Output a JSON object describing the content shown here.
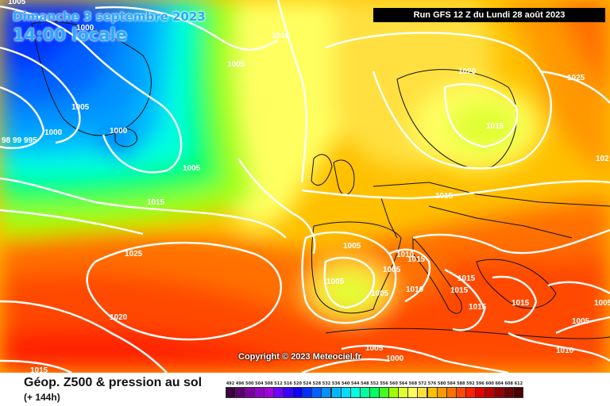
{
  "header": {
    "date_line": "Dimanche 3 septembre 2023",
    "time_line": "14:00 locale",
    "run_info": "Run GFS 12 Z du Lundi 28 août 2023"
  },
  "copyright": "Copyright © 2023 Meteociel.fr",
  "legend": {
    "title": "Géop. Z500 & pression au sol",
    "subtitle": "(+ 144h)",
    "scale": [
      {
        "value": "492",
        "color": "#3c0040"
      },
      {
        "value": "496",
        "color": "#5a0070"
      },
      {
        "value": "500",
        "color": "#7a00a0"
      },
      {
        "value": "504",
        "color": "#9000c8"
      },
      {
        "value": "508",
        "color": "#a000e0"
      },
      {
        "value": "512",
        "color": "#6e00ff"
      },
      {
        "value": "516",
        "color": "#3c00ff"
      },
      {
        "value": "520",
        "color": "#1000ff"
      },
      {
        "value": "524",
        "color": "#0030ff"
      },
      {
        "value": "528",
        "color": "#0060ff"
      },
      {
        "value": "532",
        "color": "#0090ff"
      },
      {
        "value": "536",
        "color": "#00b8ff"
      },
      {
        "value": "540",
        "color": "#00dcff"
      },
      {
        "value": "544",
        "color": "#00ffe0"
      },
      {
        "value": "548",
        "color": "#00ffa0"
      },
      {
        "value": "552",
        "color": "#00ff60"
      },
      {
        "value": "556",
        "color": "#40ff20"
      },
      {
        "value": "560",
        "color": "#a0ff00"
      },
      {
        "value": "564",
        "color": "#e0ff30"
      },
      {
        "value": "568",
        "color": "#ffff60"
      },
      {
        "value": "572",
        "color": "#ffe040"
      },
      {
        "value": "576",
        "color": "#ffc000"
      },
      {
        "value": "580",
        "color": "#ff9800"
      },
      {
        "value": "584",
        "color": "#ff7000"
      },
      {
        "value": "588",
        "color": "#ff4800"
      },
      {
        "value": "592",
        "color": "#ff2000"
      },
      {
        "value": "596",
        "color": "#e00000"
      },
      {
        "value": "600",
        "color": "#b80000"
      },
      {
        "value": "604",
        "color": "#900000"
      },
      {
        "value": "608",
        "color": "#6a0000"
      },
      {
        "value": "612",
        "color": "#480000"
      }
    ]
  },
  "isobar_labels": [
    {
      "text": "1005"
    },
    {
      "text": "1000"
    },
    {
      "text": "1010"
    },
    {
      "text": "1005"
    },
    {
      "text": "1005"
    },
    {
      "text": "1000"
    },
    {
      "text": "1000"
    },
    {
      "text": "98"
    },
    {
      "text": "99"
    },
    {
      "text": "995"
    },
    {
      "text": "1005"
    },
    {
      "text": "1015"
    },
    {
      "text": "1020"
    },
    {
      "text": "1025"
    },
    {
      "text": "1015"
    },
    {
      "text": "102"
    },
    {
      "text": "1015"
    },
    {
      "text": "1025"
    },
    {
      "text": "1020"
    },
    {
      "text": "1005"
    },
    {
      "text": "1005"
    },
    {
      "text": "1005"
    },
    {
      "text": "1005"
    },
    {
      "text": "1010"
    },
    {
      "text": "1015"
    },
    {
      "text": "1010"
    },
    {
      "text": "1015"
    },
    {
      "text": "1015"
    },
    {
      "text": "1015"
    },
    {
      "text": "1015"
    },
    {
      "text": "1005"
    },
    {
      "text": "1010"
    },
    {
      "text": "1005"
    },
    {
      "text": "1000"
    },
    {
      "text": "1015"
    },
    {
      "text": "1005"
    }
  ]
}
